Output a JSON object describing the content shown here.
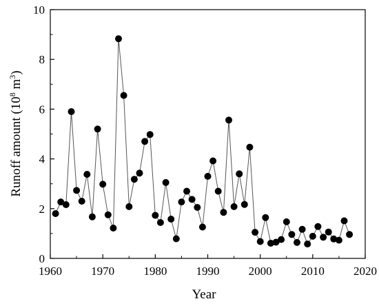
{
  "chart_data": {
    "type": "line",
    "subtype": "line-with-markers",
    "title": "",
    "xlabel": "Year",
    "ylabel": "Runoff amount (10^8 m^3)",
    "ylabel_parts": {
      "base": "Runoff amount (10",
      "exp1": "8",
      "mid": " m",
      "exp2": "3",
      "end": ")"
    },
    "xlim": [
      1960,
      2020
    ],
    "ylim": [
      0,
      10
    ],
    "xticks": [
      1960,
      1970,
      1980,
      1990,
      2000,
      2010,
      2020
    ],
    "yticks": [
      0,
      2,
      4,
      6,
      8,
      10
    ],
    "grid": false,
    "legend": "none",
    "colors": {
      "line": "#555555",
      "marker": "#000000",
      "axis": "#000000"
    },
    "series": [
      {
        "x": [
          1961,
          1962,
          1963,
          1964,
          1965,
          1966,
          1967,
          1968,
          1969,
          1970,
          1971,
          1972,
          1973,
          1974,
          1975,
          1976,
          1977,
          1978,
          1979,
          1980,
          1981,
          1982,
          1983,
          1984,
          1985,
          1986,
          1987,
          1988,
          1989,
          1990,
          1991,
          1992,
          1993,
          1994,
          1995,
          1996,
          1997,
          1998,
          1999,
          2000,
          2001,
          2002,
          2003,
          2004,
          2005,
          2006,
          2007,
          2008,
          2009,
          2010,
          2011,
          2012,
          2013,
          2014,
          2015,
          2016,
          2017
        ],
        "y": [
          1.8,
          2.27,
          2.16,
          5.9,
          2.73,
          2.3,
          3.38,
          1.67,
          5.2,
          2.98,
          1.75,
          1.22,
          8.83,
          6.55,
          2.08,
          3.18,
          3.43,
          4.7,
          4.98,
          1.73,
          1.44,
          3.05,
          1.58,
          0.79,
          2.27,
          2.7,
          2.37,
          2.05,
          1.26,
          3.3,
          3.92,
          2.7,
          1.85,
          5.56,
          2.08,
          3.4,
          2.17,
          4.47,
          1.05,
          0.68,
          1.64,
          0.61,
          0.65,
          0.76,
          1.47,
          0.96,
          0.64,
          1.17,
          0.58,
          0.89,
          1.28,
          0.85,
          1.06,
          0.78,
          0.73,
          1.51,
          0.96
        ]
      }
    ]
  }
}
